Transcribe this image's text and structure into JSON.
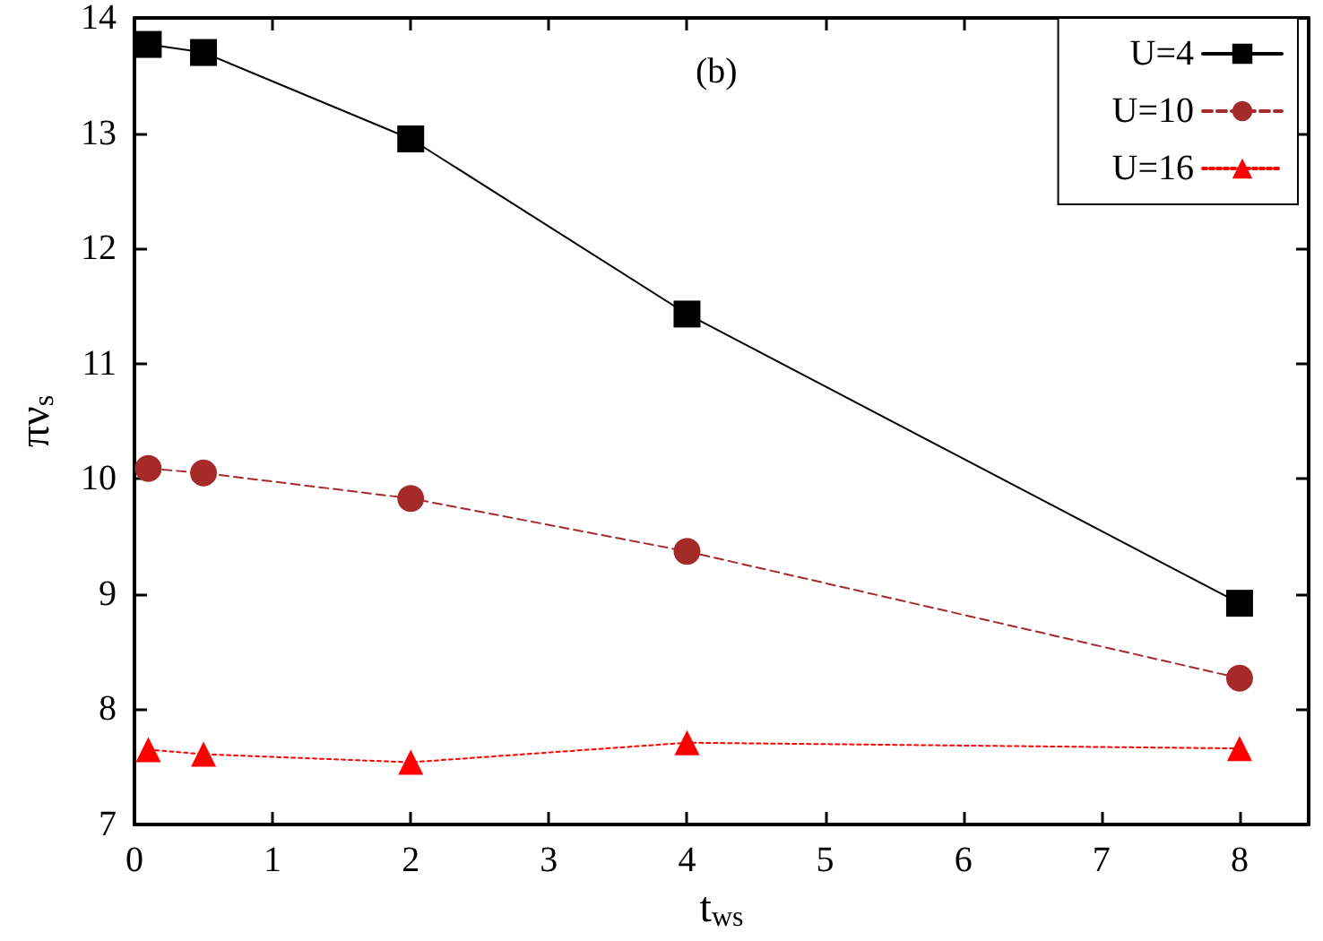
{
  "chart_data": {
    "type": "line",
    "xlabel": "t$_{ws}$",
    "ylabel": "πν$_{s}$",
    "annotations": [
      "(b)"
    ],
    "x": [
      0.1,
      0.5,
      2,
      4,
      8
    ],
    "series": [
      {
        "name": "U=4",
        "color": "#000000",
        "marker": "square",
        "line_style": "solid",
        "values": [
          13.77,
          13.7,
          12.95,
          11.43,
          8.92
        ]
      },
      {
        "name": "U=10",
        "color": "#a52a2a",
        "marker": "circle",
        "line_style": "dashed",
        "values": [
          10.09,
          10.05,
          9.83,
          9.37,
          8.27
        ]
      },
      {
        "name": "U=16",
        "color": "#ff0000",
        "marker": "triangle",
        "line_style": "dotted",
        "values": [
          7.65,
          7.61,
          7.54,
          7.71,
          7.66
        ]
      }
    ],
    "xlim": [
      0,
      8.5
    ],
    "xticks": [
      0,
      1,
      2,
      3,
      4,
      5,
      6,
      7,
      8
    ],
    "ylim": [
      7,
      14
    ],
    "yticks": [
      7,
      8,
      9,
      10,
      11,
      12,
      13,
      14
    ],
    "grid": false,
    "legend": "top right"
  }
}
